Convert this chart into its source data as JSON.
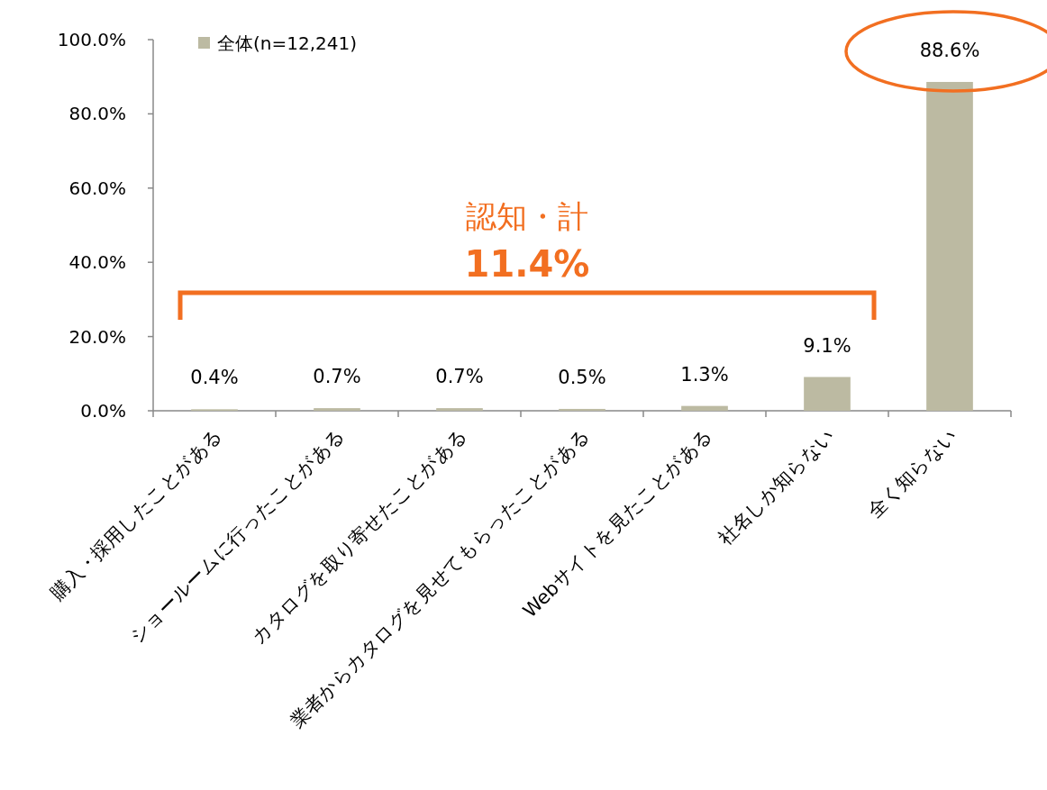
{
  "chart_data": {
    "type": "bar",
    "categories": [
      "購入・採用したことがある",
      "ショールームに行ったことがある",
      "カタログを取り寄せたことがある",
      "業者からカタログを見せてもらったことがある",
      "Webサイトを見たことがある",
      "社名しか知らない",
      "全く知らない"
    ],
    "series": [
      {
        "name": "全体(n=12,241)",
        "color": "#bcbaa2",
        "values": [
          0.4,
          0.7,
          0.7,
          0.5,
          1.3,
          9.1,
          88.6
        ],
        "value_labels": [
          "0.4%",
          "0.7%",
          "0.7%",
          "0.5%",
          "1.3%",
          "9.1%",
          "88.6%"
        ]
      }
    ],
    "ylim": [
      0,
      100
    ],
    "yticks": [
      {
        "value": 0,
        "label": "0.0%"
      },
      {
        "value": 20,
        "label": "20.0%"
      },
      {
        "value": 40,
        "label": "40.0%"
      },
      {
        "value": 60,
        "label": "60.0%"
      },
      {
        "value": 80,
        "label": "80.0%"
      },
      {
        "value": 100,
        "label": "100.0%"
      }
    ],
    "legend": "top left",
    "grid": false,
    "annotations": [
      "認知・計",
      "11.4%"
    ]
  }
}
